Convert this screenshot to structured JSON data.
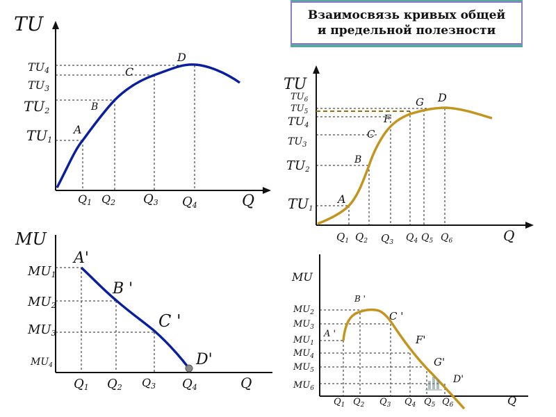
{
  "title": {
    "line1": "Взаимосвязь кривых общей",
    "line2": "и предельной полезности"
  },
  "colors": {
    "background": "#5aa6a2",
    "blue_curve": "#0a1fa0",
    "gold_curve": "#c3951f",
    "title_border": "#8a7fc0"
  },
  "panel1": {
    "y_axis": "TU",
    "x_axis": "Q",
    "y_ticks": [
      {
        "main": "TU",
        "sub": "4"
      },
      {
        "main": "TU",
        "sub": "3"
      },
      {
        "main": "TU",
        "sub": "2"
      },
      {
        "main": "TU",
        "sub": "1"
      }
    ],
    "x_ticks": [
      {
        "main": "Q",
        "sub": "1"
      },
      {
        "main": "Q",
        "sub": "2"
      },
      {
        "main": "Q",
        "sub": "3"
      },
      {
        "main": "Q",
        "sub": "4"
      }
    ],
    "points": [
      "A",
      "B",
      "C",
      "D"
    ]
  },
  "panel2": {
    "y_axis": "MU",
    "x_axis": "Q",
    "y_ticks": [
      {
        "main": "MU",
        "sub": "1"
      },
      {
        "main": "MU",
        "sub": "2"
      },
      {
        "main": "MU",
        "sub": "3"
      },
      {
        "main": "MU",
        "sub": "4"
      }
    ],
    "x_ticks": [
      {
        "main": "Q",
        "sub": "1"
      },
      {
        "main": "Q",
        "sub": "2"
      },
      {
        "main": "Q",
        "sub": "3"
      },
      {
        "main": "Q",
        "sub": "4"
      }
    ],
    "points": [
      "A'",
      "B '",
      "C '",
      "D'"
    ]
  },
  "panel3": {
    "y_axis": "TU",
    "x_axis": "Q",
    "y_ticks": [
      {
        "main": "TU",
        "sub": "6"
      },
      {
        "main": "TU",
        "sub": "5"
      },
      {
        "main": "TU",
        "sub": "4"
      },
      {
        "main": "TU",
        "sub": "3"
      },
      {
        "main": "TU",
        "sub": "2"
      },
      {
        "main": "TU",
        "sub": "1"
      }
    ],
    "x_ticks": [
      {
        "main": "Q",
        "sub": "1"
      },
      {
        "main": "Q",
        "sub": "2"
      },
      {
        "main": "Q",
        "sub": "3"
      },
      {
        "main": "Q",
        "sub": "4"
      },
      {
        "main": "Q",
        "sub": "5"
      },
      {
        "main": "Q",
        "sub": "6"
      }
    ],
    "points": [
      "A",
      "B",
      "C",
      "F",
      "G",
      "D"
    ]
  },
  "panel4": {
    "y_axis": "MU",
    "x_axis": "Q",
    "y_ticks": [
      {
        "main": "MU",
        "sub": "2"
      },
      {
        "main": "MU",
        "sub": "3"
      },
      {
        "main": "MU",
        "sub": "1"
      },
      {
        "main": "MU",
        "sub": "4"
      },
      {
        "main": "MU",
        "sub": "5"
      },
      {
        "main": "MU",
        "sub": "6"
      }
    ],
    "x_ticks": [
      {
        "main": "Q",
        "sub": "1"
      },
      {
        "main": "Q",
        "sub": "2"
      },
      {
        "main": "Q",
        "sub": "3"
      },
      {
        "main": "Q",
        "sub": "4"
      },
      {
        "main": "Q",
        "sub": "5"
      },
      {
        "main": "Q",
        "sub": "6"
      }
    ],
    "points": [
      "A '",
      "B '",
      "C '",
      "F'",
      "G'",
      "D'"
    ]
  }
}
